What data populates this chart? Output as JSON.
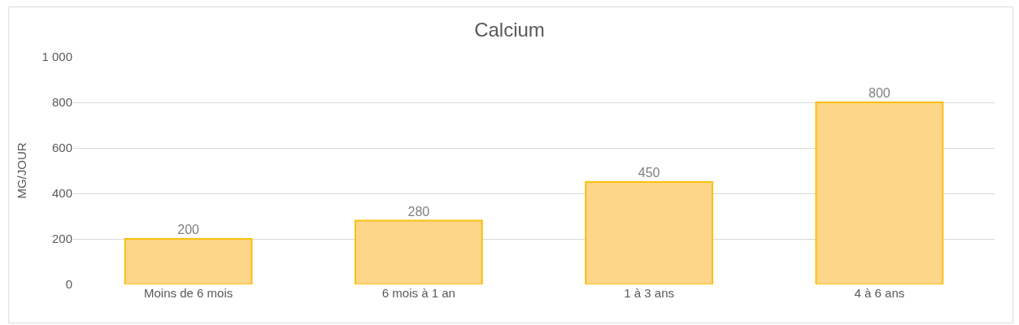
{
  "chart_data": {
    "type": "bar",
    "title": "Calcium",
    "ylabel": "MG/JOUR",
    "categories": [
      "Moins de 6 mois",
      "6 mois à 1 an",
      "1 à 3 ans",
      "4 à 6 ans"
    ],
    "values": [
      200,
      280,
      450,
      800
    ],
    "color": "#fdd68a",
    "ylim": [
      0,
      1000
    ],
    "yticks": [
      0,
      200,
      400,
      600,
      800,
      {
        "value": 1000,
        "label": "1 000"
      }
    ],
    "grid": "y",
    "data_labels": true
  }
}
